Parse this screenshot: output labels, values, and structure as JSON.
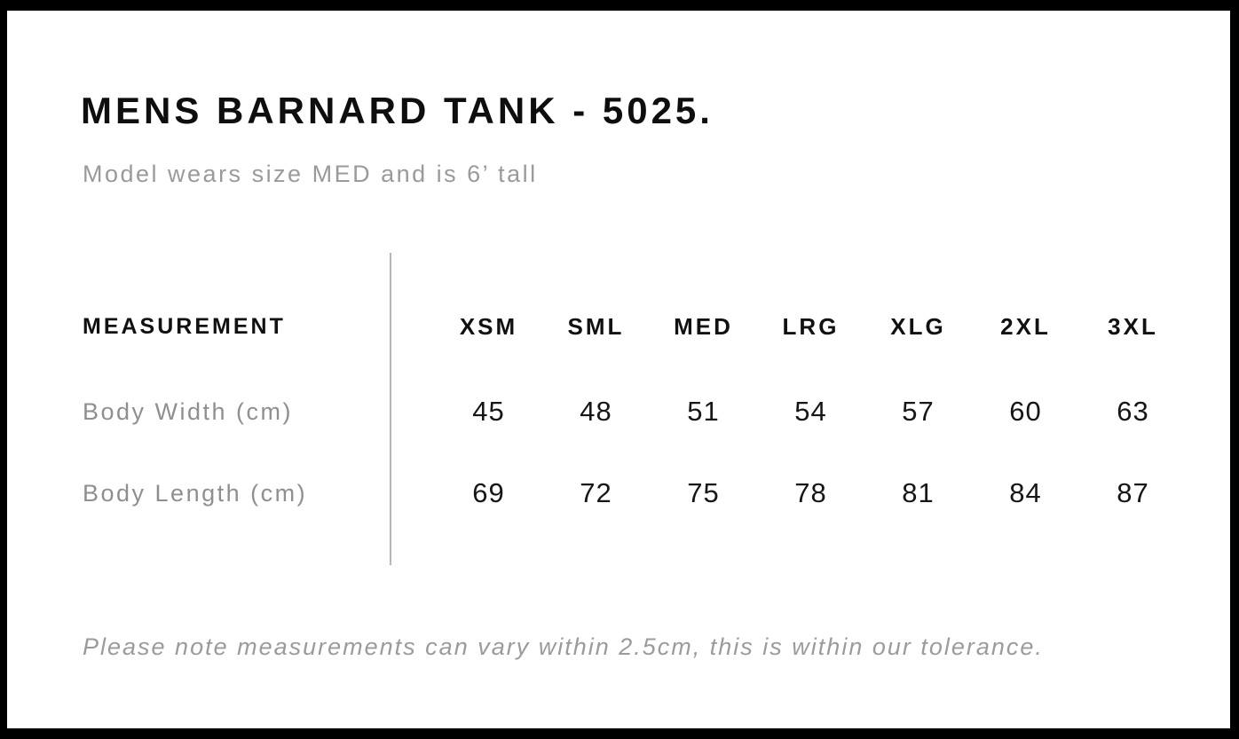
{
  "header": {
    "title": "MENS BARNARD TANK - 5025.",
    "subtitle": "Model wears size MED and is 6’ tall"
  },
  "size_chart": {
    "measurement_header": "MEASUREMENT",
    "sizes": [
      "XSM",
      "SML",
      "MED",
      "LRG",
      "XLG",
      "2XL",
      "3XL"
    ],
    "rows": [
      {
        "label": "Body Width (cm)",
        "values": [
          "45",
          "48",
          "51",
          "54",
          "57",
          "60",
          "63"
        ]
      },
      {
        "label": "Body Length (cm)",
        "values": [
          "69",
          "72",
          "75",
          "78",
          "81",
          "84",
          "87"
        ]
      }
    ]
  },
  "footer": {
    "note": "Please note measurements can vary within 2.5cm, this is within our tolerance."
  },
  "colors": {
    "frame": "#000000",
    "background": "#ffffff",
    "text_primary": "#111111",
    "text_muted": "#9a9a9a",
    "divider": "#b4b4b4"
  }
}
